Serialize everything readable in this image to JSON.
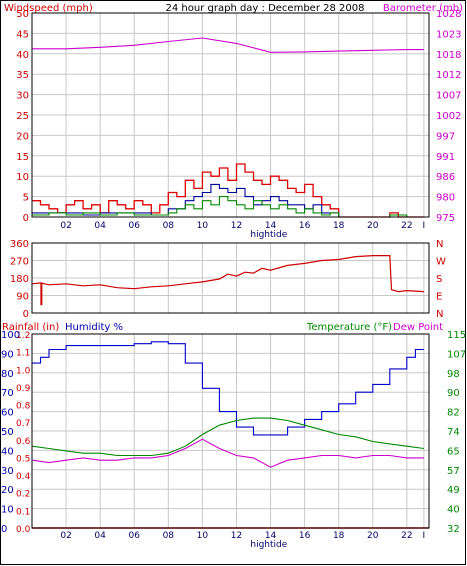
{
  "header": {
    "title": "24 hour graph day : December 28 2008",
    "left_label": "Windspeed (mph)",
    "right_label": "Barometer (mb)"
  },
  "chart_data": [
    {
      "type": "line",
      "name": "wind-barometer",
      "x_ticks": [
        "02",
        "04",
        "06",
        "08",
        "10",
        "12",
        "14",
        "16",
        "18",
        "20",
        "22",
        "I"
      ],
      "x_marker": "hightide",
      "x_marker_hour": 13.9,
      "xlim": [
        0,
        23.3
      ],
      "left_axis": {
        "label": "Windspeed (mph)",
        "ticks": [
          0,
          5,
          10,
          15,
          20,
          25,
          30,
          35,
          40,
          45,
          50
        ],
        "lim": [
          0,
          50
        ]
      },
      "right_axis": {
        "label": "Barometer (mb)",
        "ticks": [
          975,
          980,
          986,
          991,
          997,
          1002,
          1007,
          1012,
          1018,
          1023,
          1028
        ],
        "lim": [
          975,
          1028
        ]
      },
      "series": [
        {
          "key": "gust",
          "axis": "left",
          "color": "#dd0000",
          "style": "step",
          "x": [
            0,
            0.5,
            1,
            1.5,
            2,
            2.5,
            3,
            3.5,
            4,
            4.5,
            5,
            5.5,
            6,
            6.5,
            7,
            7.5,
            8,
            8.5,
            9,
            9.5,
            10,
            10.5,
            11,
            11.5,
            12,
            12.5,
            13,
            13.5,
            14,
            14.5,
            15,
            15.5,
            16,
            16.5,
            17,
            17.5,
            18,
            18.5,
            19,
            19.5,
            20,
            20.5,
            21,
            21.5,
            22,
            22.5,
            23
          ],
          "y": [
            4,
            3,
            2,
            1,
            3,
            4,
            2,
            3,
            1,
            4,
            3,
            2,
            4,
            3,
            1,
            3,
            6,
            5,
            9,
            7,
            11,
            10,
            12,
            9,
            13,
            11,
            9,
            8,
            10,
            9,
            7,
            6,
            8,
            5,
            3,
            2,
            0,
            0,
            0,
            0,
            0,
            0,
            1,
            0,
            0,
            0,
            0
          ]
        },
        {
          "key": "speed",
          "axis": "left",
          "color": "#000099",
          "style": "step",
          "x": [
            0,
            1,
            2,
            3,
            4,
            5,
            6,
            7,
            8,
            8.5,
            9,
            9.5,
            10,
            10.5,
            11,
            11.5,
            12,
            12.5,
            13,
            13.5,
            14,
            14.5,
            15,
            15.5,
            16,
            16.5,
            17,
            17.5,
            18,
            19,
            20,
            21,
            22,
            23
          ],
          "y": [
            1,
            1,
            1,
            0.5,
            1,
            1,
            1,
            0.5,
            2,
            2,
            4,
            5,
            6,
            8,
            7,
            6,
            7,
            5,
            3,
            4,
            5,
            4,
            3,
            3,
            2,
            3,
            1,
            1,
            0,
            0,
            0,
            0,
            0,
            0
          ]
        },
        {
          "key": "avg",
          "axis": "left",
          "color": "#008800",
          "style": "step",
          "x": [
            0,
            1,
            2,
            3,
            4,
            5,
            6,
            7,
            8,
            8.5,
            9,
            9.5,
            10,
            10.5,
            11,
            11.5,
            12,
            12.5,
            13,
            13.5,
            14,
            14.5,
            15,
            15.5,
            16,
            16.5,
            17,
            17.5,
            18,
            19,
            20,
            21,
            22,
            23
          ],
          "y": [
            0.5,
            1,
            0.5,
            1,
            0.5,
            1,
            0.5,
            0.5,
            1,
            2,
            3,
            2,
            4,
            3,
            5,
            4,
            3,
            2,
            4,
            3,
            2,
            3,
            2,
            1,
            2,
            1,
            0.5,
            1,
            0,
            0,
            0,
            0.5,
            0,
            0
          ]
        },
        {
          "key": "barometer",
          "axis": "right",
          "color": "#cc00cc",
          "style": "line",
          "x": [
            0,
            2,
            4,
            6,
            8,
            10,
            12,
            14,
            16,
            18,
            20,
            22,
            23
          ],
          "y": [
            1018.7,
            1018.7,
            1019.1,
            1019.6,
            1020.6,
            1021.5,
            1020.1,
            1017.8,
            1017.9,
            1018.1,
            1018.3,
            1018.5,
            1018.5
          ]
        }
      ]
    },
    {
      "type": "line",
      "name": "wind-direction",
      "x_ticks": [
        "02",
        "04",
        "06",
        "08",
        "10",
        "12",
        "14",
        "16",
        "18",
        "20",
        "22",
        "I"
      ],
      "xlim": [
        0,
        23.3
      ],
      "left_axis": {
        "ticks": [
          0,
          90,
          180,
          270,
          360
        ],
        "lim": [
          0,
          360
        ]
      },
      "right_axis": {
        "ticks": [
          "N",
          "W",
          "S",
          "E",
          "N"
        ]
      },
      "series": [
        {
          "key": "direction",
          "axis": "left",
          "color": "#cc0000",
          "style": "line",
          "x": [
            0,
            0.5,
            1,
            2,
            3,
            4,
            5,
            6,
            7,
            8,
            9,
            10,
            11,
            11.5,
            12,
            12.5,
            13,
            13.5,
            14,
            15,
            16,
            17,
            18,
            19,
            20,
            21,
            21.1,
            21.5,
            22,
            23
          ],
          "y": [
            150,
            155,
            145,
            150,
            140,
            145,
            130,
            125,
            135,
            140,
            150,
            160,
            175,
            200,
            190,
            210,
            205,
            230,
            220,
            245,
            255,
            270,
            275,
            290,
            295,
            295,
            120,
            110,
            115,
            110
          ],
          "spikes": [
            {
              "x": 0.55,
              "y": 40
            }
          ]
        }
      ]
    },
    {
      "type": "line",
      "name": "rain-humidity-temperature",
      "x_ticks": [
        "02",
        "04",
        "06",
        "08",
        "10",
        "12",
        "14",
        "16",
        "18",
        "20",
        "22",
        "I"
      ],
      "x_marker": "hightide",
      "x_marker_hour": 13.9,
      "xlim": [
        0,
        23.3
      ],
      "labels": {
        "rainfall": "Rainfall (in)",
        "humidity": "Humidity %",
        "temperature": "Temperature (°F)",
        "dewpoint": "Dew Point"
      },
      "left_axis_rain": {
        "ticks": [
          0.0,
          0.1,
          0.2,
          0.4,
          0.5,
          0.6,
          0.7,
          0.8,
          0.9,
          1.0,
          1.1,
          1.2
        ],
        "lim": [
          0,
          1.2
        ]
      },
      "left_axis_humidity": {
        "ticks": [
          0,
          10,
          20,
          30,
          40,
          50,
          60,
          70,
          80,
          90,
          100
        ],
        "lim": [
          0,
          100
        ]
      },
      "right_axis": {
        "ticks": [
          32,
          40,
          49,
          57,
          65,
          74,
          82,
          90,
          98,
          107,
          115
        ],
        "lim": [
          32,
          115
        ]
      },
      "series": [
        {
          "key": "humidity",
          "axis": "humidity",
          "color": "#0000cc",
          "style": "step",
          "x": [
            0,
            0.5,
            1,
            2,
            3,
            4,
            5,
            6,
            7,
            8,
            9,
            10,
            11,
            12,
            13,
            14,
            15,
            16,
            17,
            18,
            19,
            20,
            21,
            22,
            22.5,
            23
          ],
          "y": [
            85,
            88,
            92,
            94,
            94,
            94,
            94,
            95,
            96,
            95,
            85,
            72,
            60,
            52,
            48,
            48,
            52,
            56,
            60,
            64,
            70,
            74,
            82,
            88,
            92,
            92
          ]
        },
        {
          "key": "temperature",
          "axis": "right",
          "color": "#008800",
          "style": "line",
          "x": [
            0,
            1,
            2,
            3,
            4,
            5,
            6,
            7,
            8,
            9,
            10,
            11,
            12,
            13,
            14,
            15,
            16,
            17,
            18,
            19,
            20,
            21,
            22,
            23
          ],
          "y": [
            67,
            66,
            65,
            64,
            64,
            63,
            63,
            63,
            64,
            67,
            72,
            76,
            78,
            79,
            79,
            78,
            76,
            74,
            72,
            71,
            69,
            68,
            67,
            66
          ]
        },
        {
          "key": "dewpoint",
          "axis": "right",
          "color": "#cc00cc",
          "style": "line",
          "x": [
            0,
            1,
            2,
            3,
            4,
            5,
            6,
            7,
            8,
            9,
            10,
            11,
            12,
            13,
            14,
            15,
            16,
            17,
            18,
            19,
            20,
            21,
            22,
            23
          ],
          "y": [
            61,
            60,
            61,
            62,
            61,
            61,
            62,
            62,
            63,
            66,
            70,
            66,
            63,
            62,
            58,
            61,
            62,
            63,
            63,
            62,
            63,
            63,
            62,
            62
          ]
        },
        {
          "key": "rain",
          "axis": "rain",
          "color": "#dd0000",
          "style": "line",
          "x": [
            0,
            23.3
          ],
          "y": [
            0,
            0
          ]
        }
      ]
    }
  ]
}
